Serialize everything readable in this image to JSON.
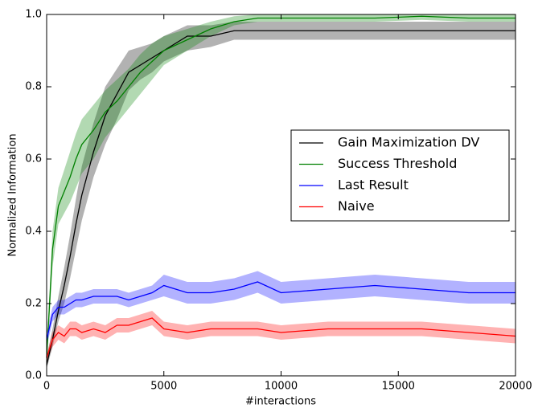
{
  "chart_data": {
    "type": "line",
    "xlabel": "#interactions",
    "ylabel": "Normalized Information",
    "x": [
      0,
      250,
      500,
      750,
      1000,
      1250,
      1500,
      2000,
      2500,
      3000,
      3500,
      4000,
      4500,
      5000,
      6000,
      7000,
      8000,
      9000,
      10000,
      12000,
      14000,
      16000,
      18000,
      20000
    ],
    "series": [
      {
        "name": "Gain Maximization DV",
        "color": "#000000",
        "values": [
          0.03,
          0.1,
          0.18,
          0.25,
          0.33,
          0.42,
          0.5,
          0.62,
          0.72,
          0.78,
          0.84,
          0.86,
          0.88,
          0.9,
          0.94,
          0.94,
          0.955,
          0.955,
          0.955,
          0.955,
          0.955,
          0.955,
          0.955,
          0.955
        ],
        "lower": [
          0.02,
          0.08,
          0.15,
          0.2,
          0.27,
          0.35,
          0.43,
          0.55,
          0.64,
          0.71,
          0.79,
          0.82,
          0.84,
          0.87,
          0.9,
          0.91,
          0.93,
          0.93,
          0.93,
          0.93,
          0.93,
          0.93,
          0.93,
          0.93
        ],
        "upper": [
          0.05,
          0.13,
          0.22,
          0.3,
          0.39,
          0.49,
          0.58,
          0.7,
          0.8,
          0.85,
          0.9,
          0.91,
          0.92,
          0.94,
          0.97,
          0.97,
          0.98,
          0.98,
          0.98,
          0.98,
          0.98,
          0.98,
          0.98,
          0.98
        ]
      },
      {
        "name": "Success Threshold",
        "color": "#008000",
        "values": [
          0.05,
          0.35,
          0.47,
          0.51,
          0.55,
          0.6,
          0.64,
          0.68,
          0.73,
          0.76,
          0.8,
          0.84,
          0.87,
          0.9,
          0.93,
          0.96,
          0.98,
          0.99,
          0.99,
          0.99,
          0.99,
          0.995,
          0.99,
          0.99
        ],
        "lower": [
          0.03,
          0.3,
          0.42,
          0.45,
          0.48,
          0.52,
          0.56,
          0.6,
          0.66,
          0.7,
          0.74,
          0.78,
          0.82,
          0.86,
          0.9,
          0.94,
          0.97,
          0.98,
          0.98,
          0.98,
          0.98,
          0.985,
          0.98,
          0.98
        ],
        "upper": [
          0.07,
          0.4,
          0.52,
          0.57,
          0.62,
          0.67,
          0.71,
          0.75,
          0.79,
          0.82,
          0.85,
          0.89,
          0.92,
          0.94,
          0.96,
          0.98,
          0.995,
          1,
          1,
          1,
          1,
          1,
          1,
          1
        ]
      },
      {
        "name": "Last Result",
        "color": "#0000ff",
        "values": [
          0.1,
          0.17,
          0.19,
          0.19,
          0.2,
          0.21,
          0.21,
          0.22,
          0.22,
          0.22,
          0.21,
          0.22,
          0.23,
          0.25,
          0.23,
          0.23,
          0.24,
          0.26,
          0.23,
          0.24,
          0.25,
          0.24,
          0.23,
          0.23
        ],
        "lower": [
          0.08,
          0.15,
          0.17,
          0.17,
          0.18,
          0.19,
          0.19,
          0.2,
          0.2,
          0.2,
          0.19,
          0.2,
          0.21,
          0.22,
          0.2,
          0.2,
          0.21,
          0.23,
          0.2,
          0.21,
          0.22,
          0.21,
          0.2,
          0.2
        ],
        "upper": [
          0.12,
          0.19,
          0.21,
          0.21,
          0.22,
          0.23,
          0.23,
          0.24,
          0.24,
          0.24,
          0.23,
          0.24,
          0.25,
          0.28,
          0.26,
          0.26,
          0.27,
          0.29,
          0.26,
          0.27,
          0.28,
          0.27,
          0.26,
          0.26
        ]
      },
      {
        "name": "Naive",
        "color": "#ff0000",
        "values": [
          0.05,
          0.1,
          0.12,
          0.11,
          0.13,
          0.13,
          0.12,
          0.13,
          0.12,
          0.14,
          0.14,
          0.15,
          0.16,
          0.13,
          0.12,
          0.13,
          0.13,
          0.13,
          0.12,
          0.13,
          0.13,
          0.13,
          0.12,
          0.11
        ],
        "lower": [
          0.04,
          0.08,
          0.1,
          0.09,
          0.11,
          0.11,
          0.1,
          0.11,
          0.1,
          0.12,
          0.12,
          0.13,
          0.14,
          0.11,
          0.1,
          0.11,
          0.11,
          0.11,
          0.1,
          0.11,
          0.11,
          0.11,
          0.1,
          0.09
        ],
        "upper": [
          0.06,
          0.12,
          0.14,
          0.13,
          0.15,
          0.15,
          0.14,
          0.15,
          0.14,
          0.16,
          0.16,
          0.17,
          0.18,
          0.15,
          0.14,
          0.15,
          0.15,
          0.15,
          0.14,
          0.15,
          0.15,
          0.15,
          0.14,
          0.13
        ]
      }
    ],
    "xlim": [
      0,
      20000
    ],
    "xticks": [
      0,
      5000,
      10000,
      15000,
      20000
    ],
    "ylim": [
      0,
      1
    ],
    "yticks": [
      {
        "value": 0,
        "label": "0.0"
      },
      {
        "value": 0.2,
        "label": "0.2"
      },
      {
        "value": 0.4,
        "label": "0.4"
      },
      {
        "value": 0.6,
        "label": "0.6"
      },
      {
        "value": 0.8,
        "label": "0.8"
      },
      {
        "value": 1,
        "label": "1.0"
      }
    ],
    "legend": "center right"
  }
}
